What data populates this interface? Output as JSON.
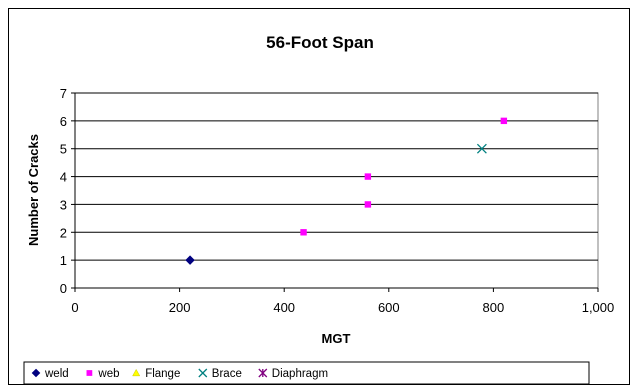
{
  "chart_data": {
    "type": "scatter",
    "title": "56-Foot Span",
    "xlabel": "MGT",
    "ylabel": "Number of Cracks",
    "xlim": [
      0,
      1000
    ],
    "ylim": [
      0,
      7
    ],
    "x_ticks": [
      "0",
      "200",
      "400",
      "600",
      "800",
      "1,000"
    ],
    "y_ticks": [
      "0",
      "1",
      "2",
      "3",
      "4",
      "5",
      "6",
      "7"
    ],
    "grid": "horizontal",
    "legend_position": "bottom",
    "series": [
      {
        "name": "weld",
        "marker": "diamond",
        "color": "#000080",
        "points": [
          [
            220,
            1
          ]
        ]
      },
      {
        "name": "web",
        "marker": "square",
        "color": "#ff00ff",
        "points": [
          [
            437,
            2
          ],
          [
            560,
            3
          ],
          [
            560,
            4
          ],
          [
            820,
            6
          ]
        ]
      },
      {
        "name": "Flange",
        "marker": "triangle",
        "color": "#ffff00",
        "points": []
      },
      {
        "name": "Brace",
        "marker": "x",
        "color": "#008080",
        "points": [
          [
            778,
            5
          ]
        ]
      },
      {
        "name": "Diaphragm",
        "marker": "star",
        "color": "#800080",
        "points": []
      }
    ]
  }
}
